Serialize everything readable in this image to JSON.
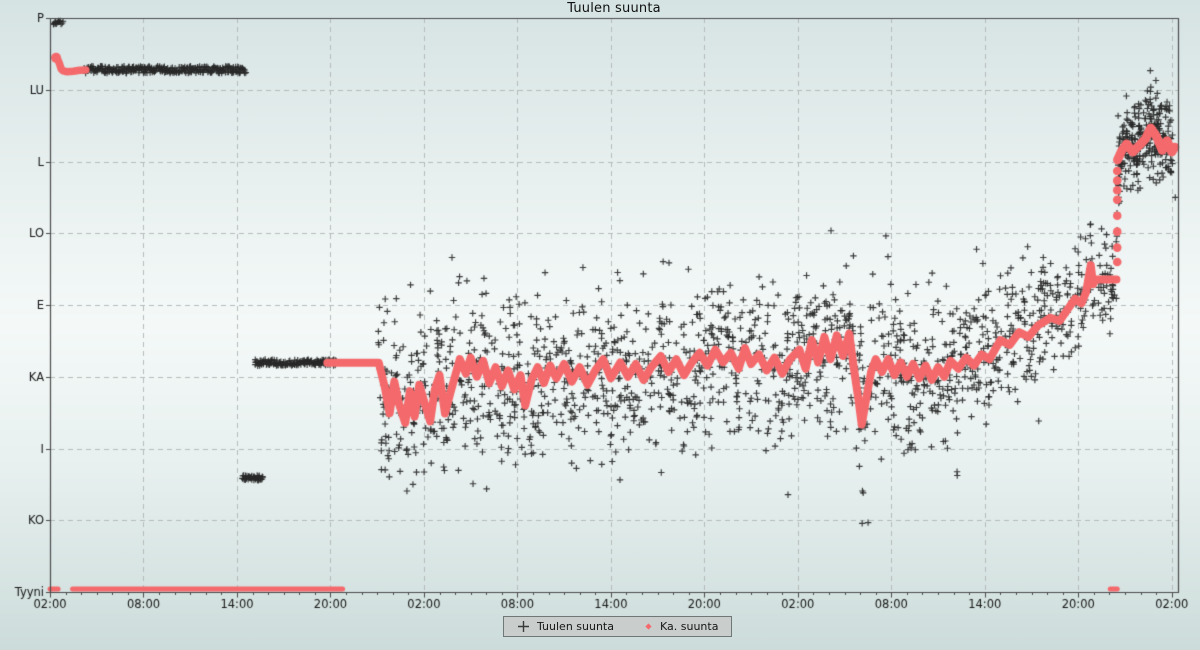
{
  "title": "Tuulen suunta",
  "legend": {
    "items": [
      {
        "label": "Tuulen suunta",
        "marker": "plus-icon"
      },
      {
        "label": "Ka. suunta",
        "marker": "diamond-icon"
      }
    ]
  },
  "colors": {
    "scatter_marker": "#3a3a3a",
    "average_line": "#f4696b",
    "grid": "#b5bbba",
    "axis": "#4a4a4a",
    "text": "#161616",
    "legend_bg": "#c9cecd",
    "legend_border": "#6f7777"
  },
  "chart_data": {
    "type": "scatter",
    "title": "Tuulen suunta",
    "grid": true,
    "legend_position": "bottom-center",
    "x_axis": {
      "hours_span": 72.4,
      "major_tick_interval_hours": 6,
      "minor_tick_interval_hours": 1,
      "tick_labels": [
        "02:00",
        "08:00",
        "14:00",
        "20:00",
        "02:00",
        "08:00",
        "14:00",
        "20:00",
        "02:00",
        "08:00",
        "14:00",
        "20:00",
        "02:00"
      ]
    },
    "y_axis": {
      "unit": "wind direction (compass, Finnish abbreviations; Tyyni = calm)",
      "categories": [
        {
          "label": "P",
          "deg": 360
        },
        {
          "label": "LU",
          "deg": 315
        },
        {
          "label": "L",
          "deg": 270
        },
        {
          "label": "LO",
          "deg": 225
        },
        {
          "label": "E",
          "deg": 180
        },
        {
          "label": "KA",
          "deg": 135
        },
        {
          "label": "I",
          "deg": 90
        },
        {
          "label": "KO",
          "deg": 45
        },
        {
          "label": "Tyyni",
          "deg": 0
        }
      ]
    },
    "series": [
      {
        "name": "Tuulen suunta",
        "marker": "plus",
        "color": "#3a3a3a",
        "dense_segments": [
          {
            "h0": 0.2,
            "h1": 0.8,
            "deg": 357.3,
            "count": 14,
            "jitter_deg": 1.2
          },
          {
            "h0": 2.2,
            "h1": 12.55,
            "deg": 327.6,
            "count": 300,
            "jitter_deg": 2.2
          },
          {
            "h0": 12.35,
            "h1": 13.65,
            "deg": 71.5,
            "count": 42,
            "jitter_deg": 1.6
          },
          {
            "h0": 13.15,
            "h1": 18.4,
            "deg": 143.8,
            "count": 150,
            "jitter_deg": 2.0
          }
        ],
        "scatter": {
          "h_start": 21.05,
          "h_end": 72.28,
          "count": 1780,
          "seed": 7,
          "sigma_profile": [
            [
              26,
              24
            ],
            [
              59,
              26
            ],
            [
              66,
              20
            ],
            [
              68.45,
              16
            ],
            [
              99,
              13
            ]
          ],
          "extra_cluster": {
            "h_start": 68.55,
            "h_end": 72.25,
            "count": 170,
            "sigma": 13
          }
        }
      },
      {
        "name": "Ka. suunta",
        "marker": "diamond",
        "color": "#f4696b",
        "calm_segments": [
          [
            0.0,
            0.52
          ],
          [
            1.45,
            18.78
          ],
          [
            68.05,
            68.5
          ]
        ],
        "start_path": [
          [
            0.39,
            335
          ],
          [
            0.5,
            334
          ],
          [
            0.62,
            331
          ],
          [
            0.72,
            328
          ],
          [
            0.85,
            326.8
          ],
          [
            1.1,
            326.3
          ],
          [
            1.5,
            326.6
          ],
          [
            1.9,
            327.2
          ],
          [
            2.3,
            327.4
          ]
        ],
        "avg_path": [
          [
            17.8,
            143.8
          ],
          [
            21.1,
            143.8
          ],
          [
            21.5,
            128
          ],
          [
            21.8,
            112
          ],
          [
            22.1,
            132
          ],
          [
            22.4,
            118
          ],
          [
            22.8,
            106
          ],
          [
            23.1,
            126
          ],
          [
            23.4,
            110
          ],
          [
            23.7,
            130
          ],
          [
            24.0,
            120
          ],
          [
            24.4,
            107
          ],
          [
            24.7,
            127
          ],
          [
            25.0,
            136
          ],
          [
            25.35,
            112
          ],
          [
            25.7,
            125
          ],
          [
            26.3,
            146
          ],
          [
            26.7,
            137
          ],
          [
            27.0,
            147
          ],
          [
            27.4,
            135
          ],
          [
            27.8,
            145
          ],
          [
            28.2,
            131
          ],
          [
            28.6,
            141
          ],
          [
            29.0,
            129
          ],
          [
            29.4,
            139
          ],
          [
            29.8,
            127
          ],
          [
            30.2,
            136
          ],
          [
            30.5,
            117
          ],
          [
            30.9,
            133
          ],
          [
            31.3,
            141
          ],
          [
            31.7,
            131
          ],
          [
            32.1,
            142
          ],
          [
            32.5,
            134
          ],
          [
            33.0,
            143
          ],
          [
            33.5,
            132
          ],
          [
            34.0,
            141
          ],
          [
            34.5,
            130
          ],
          [
            35.0,
            139
          ],
          [
            35.5,
            146
          ],
          [
            36.0,
            134
          ],
          [
            36.6,
            144
          ],
          [
            37.1,
            135
          ],
          [
            37.6,
            143
          ],
          [
            38.1,
            133
          ],
          [
            38.6,
            141
          ],
          [
            39.2,
            148
          ],
          [
            39.7,
            138
          ],
          [
            40.2,
            146
          ],
          [
            40.7,
            136
          ],
          [
            41.2,
            144
          ],
          [
            41.7,
            150
          ],
          [
            42.2,
            142
          ],
          [
            42.7,
            152
          ],
          [
            43.2,
            144
          ],
          [
            43.7,
            150
          ],
          [
            44.2,
            140
          ],
          [
            44.6,
            153
          ],
          [
            45.0,
            143
          ],
          [
            45.5,
            149
          ],
          [
            46.0,
            139
          ],
          [
            46.5,
            147
          ],
          [
            47.0,
            137
          ],
          [
            47.5,
            146
          ],
          [
            48.1,
            152
          ],
          [
            48.5,
            140
          ],
          [
            48.9,
            158
          ],
          [
            49.3,
            144
          ],
          [
            49.7,
            160
          ],
          [
            50.1,
            146
          ],
          [
            50.5,
            161
          ],
          [
            50.9,
            148
          ],
          [
            51.3,
            162
          ],
          [
            51.6,
            140
          ],
          [
            51.9,
            120
          ],
          [
            52.1,
            105
          ],
          [
            52.4,
            122
          ],
          [
            52.7,
            138
          ],
          [
            53.0,
            146
          ],
          [
            53.4,
            138
          ],
          [
            53.8,
            146
          ],
          [
            54.2,
            136
          ],
          [
            54.6,
            144
          ],
          [
            55.0,
            135
          ],
          [
            55.4,
            143
          ],
          [
            55.8,
            134
          ],
          [
            56.2,
            142
          ],
          [
            56.6,
            133
          ],
          [
            57.0,
            141
          ],
          [
            57.4,
            135
          ],
          [
            57.8,
            145
          ],
          [
            58.3,
            140
          ],
          [
            58.8,
            147
          ],
          [
            59.3,
            142
          ],
          [
            59.8,
            149
          ],
          [
            60.3,
            146
          ],
          [
            61.0,
            158
          ],
          [
            61.6,
            155
          ],
          [
            62.2,
            163
          ],
          [
            62.8,
            160
          ],
          [
            63.4,
            167
          ],
          [
            64.2,
            172
          ],
          [
            64.8,
            170
          ],
          [
            65.3,
            177
          ],
          [
            65.8,
            184
          ],
          [
            66.2,
            181
          ],
          [
            66.5,
            188
          ],
          [
            66.8,
            205
          ],
          [
            66.95,
            193
          ],
          [
            67.1,
            196
          ],
          [
            68.45,
            196
          ]
        ],
        "jump_dots": {
          "h": 68.5,
          "degs": [
            207,
            216,
            226,
            236,
            246,
            252,
            258,
            264
          ]
        },
        "end_path": [
          [
            68.52,
            271
          ],
          [
            68.8,
            277
          ],
          [
            69.1,
            281
          ],
          [
            69.5,
            276
          ],
          [
            69.9,
            280
          ],
          [
            70.3,
            284
          ],
          [
            70.65,
            291
          ],
          [
            71.0,
            286
          ],
          [
            71.4,
            277
          ],
          [
            71.7,
            283
          ],
          [
            72.0,
            276
          ],
          [
            72.2,
            279
          ]
        ]
      }
    ]
  }
}
